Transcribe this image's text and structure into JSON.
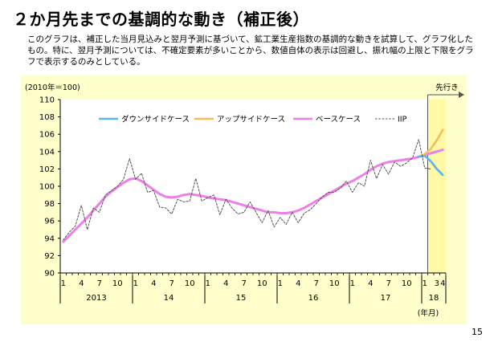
{
  "slide": {
    "title": "２か月先までの基調的な動き（補正後）",
    "description": "このグラフは、補正した当月見込みと翌月予測に基づいて、鉱工業生産指数の基調的な動きを試算して、グラフ化したもの。特に、翌月予測については、不確定要素が多いことから、数値自体の表示は回避し、振れ幅の上限と下限をグラフで表示するのみとしている。",
    "page_number": "15"
  },
  "chart_data": {
    "type": "line",
    "unit_label": "(2010年＝100)",
    "ylim": [
      90,
      110
    ],
    "yticks": [
      90,
      92,
      94,
      96,
      98,
      100,
      102,
      104,
      106,
      108,
      110
    ],
    "x_axis": {
      "month_labels": [
        {
          "i": 0,
          "text": "1"
        },
        {
          "i": 3,
          "text": "4"
        },
        {
          "i": 6,
          "text": "7"
        },
        {
          "i": 9,
          "text": "10"
        },
        {
          "i": 12,
          "text": "1"
        },
        {
          "i": 15,
          "text": "4"
        },
        {
          "i": 18,
          "text": "7"
        },
        {
          "i": 21,
          "text": "10"
        },
        {
          "i": 24,
          "text": "1"
        },
        {
          "i": 27,
          "text": "4"
        },
        {
          "i": 30,
          "text": "7"
        },
        {
          "i": 33,
          "text": "10"
        },
        {
          "i": 36,
          "text": "1"
        },
        {
          "i": 39,
          "text": "4"
        },
        {
          "i": 42,
          "text": "7"
        },
        {
          "i": 45,
          "text": "10"
        },
        {
          "i": 48,
          "text": "1"
        },
        {
          "i": 51,
          "text": "4"
        },
        {
          "i": 54,
          "text": "7"
        },
        {
          "i": 57,
          "text": "10"
        },
        {
          "i": 60,
          "text": "1"
        },
        {
          "i": 62,
          "text": "3"
        },
        {
          "i": 63,
          "text": "4"
        }
      ],
      "year_labels": [
        {
          "start": 0,
          "end": 12,
          "text": "2013"
        },
        {
          "start": 12,
          "end": 24,
          "text": "14"
        },
        {
          "start": 24,
          "end": 36,
          "text": "15"
        },
        {
          "start": 36,
          "end": 48,
          "text": "16"
        },
        {
          "start": 48,
          "end": 60,
          "text": "17"
        },
        {
          "start": 60,
          "end": 64,
          "text": "18"
        }
      ],
      "period_label": "(年月)"
    },
    "forecast_label": "先行き",
    "forecast_start_index": 61,
    "legend": [
      {
        "name": "ダウンサイドケース",
        "color": "#5BB5E8",
        "style": "solid"
      },
      {
        "name": "アップサイドケース",
        "color": "#F5BE5A",
        "style": "solid"
      },
      {
        "name": "ベースケース",
        "color": "#EE7FE6",
        "style": "solid"
      },
      {
        "name": "IIP",
        "color": "#555555",
        "style": "dashed"
      }
    ],
    "series": [
      {
        "name": "IIP",
        "x_start": 0,
        "values": [
          93.8,
          94.7,
          95.4,
          97.8,
          95.0,
          97.5,
          97.0,
          99.0,
          99.5,
          100.0,
          100.8,
          103.2,
          100.8,
          101.5,
          99.3,
          99.5,
          97.6,
          97.5,
          96.8,
          98.5,
          98.2,
          98.3,
          100.9,
          98.3,
          98.7,
          99.0,
          96.7,
          98.5,
          97.5,
          96.8,
          97.0,
          98.2,
          97.0,
          95.8,
          97.2,
          95.3,
          96.4,
          95.6,
          97.0,
          95.8,
          96.9,
          97.3,
          98.0,
          98.8,
          99.3,
          99.3,
          99.8,
          100.6,
          99.3,
          100.4,
          100.0,
          103.0,
          100.9,
          102.5,
          101.4,
          102.8,
          102.3,
          102.7,
          103.3,
          105.4,
          102.1,
          102.0
        ]
      },
      {
        "name": "ベースケース",
        "x_start": 0,
        "values": [
          93.6,
          94.3,
          95.0,
          95.7,
          96.4,
          97.2,
          98.0,
          98.8,
          99.4,
          99.9,
          100.4,
          100.8,
          100.9,
          100.6,
          100.1,
          99.6,
          99.1,
          98.8,
          98.7,
          98.8,
          99.0,
          99.1,
          99.0,
          98.9,
          98.7,
          98.6,
          98.5,
          98.4,
          98.2,
          98.0,
          97.8,
          97.6,
          97.4,
          97.2,
          97.0,
          97.0,
          96.9,
          96.9,
          97.0,
          97.2,
          97.5,
          97.9,
          98.3,
          98.7,
          99.1,
          99.5,
          99.9,
          100.3,
          100.6,
          101.0,
          101.4,
          101.9,
          102.3,
          102.6,
          102.8,
          102.9,
          103.0,
          103.1,
          103.2,
          103.4,
          103.6,
          103.8,
          104.0,
          104.2
        ]
      },
      {
        "name": "アップサイドケース",
        "x_start": 59,
        "values": [
          103.4,
          103.7,
          104.3,
          105.3,
          106.5
        ]
      },
      {
        "name": "ダウンサイドケース",
        "x_start": 59,
        "values": [
          103.4,
          103.5,
          102.9,
          102.0,
          101.3
        ]
      }
    ]
  }
}
